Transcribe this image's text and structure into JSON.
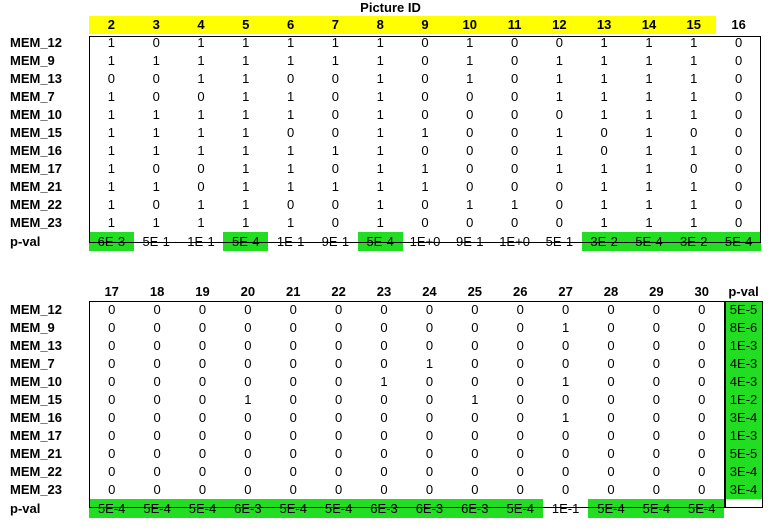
{
  "title": "Picture ID",
  "table1": {
    "headers": [
      "2",
      "3",
      "4",
      "5",
      "6",
      "7",
      "8",
      "9",
      "10",
      "11",
      "12",
      "13",
      "14",
      "15",
      "16"
    ],
    "highlighted_headers": [
      "2",
      "3",
      "4",
      "5",
      "6",
      "7",
      "8",
      "9",
      "10",
      "11",
      "12",
      "13",
      "14",
      "15"
    ],
    "rows": [
      {
        "label": "MEM_12",
        "values": [
          "1",
          "0",
          "1",
          "1",
          "1",
          "1",
          "1",
          "0",
          "1",
          "0",
          "0",
          "1",
          "1",
          "1",
          "0"
        ]
      },
      {
        "label": "MEM_9",
        "values": [
          "1",
          "1",
          "1",
          "1",
          "1",
          "1",
          "1",
          "0",
          "1",
          "0",
          "1",
          "1",
          "1",
          "1",
          "0"
        ]
      },
      {
        "label": "MEM_13",
        "values": [
          "0",
          "0",
          "1",
          "1",
          "0",
          "0",
          "1",
          "0",
          "1",
          "0",
          "1",
          "1",
          "1",
          "1",
          "0"
        ]
      },
      {
        "label": "MEM_7",
        "values": [
          "1",
          "0",
          "0",
          "1",
          "1",
          "0",
          "1",
          "0",
          "0",
          "0",
          "1",
          "1",
          "1",
          "1",
          "0"
        ]
      },
      {
        "label": "MEM_10",
        "values": [
          "1",
          "1",
          "1",
          "1",
          "1",
          "0",
          "1",
          "0",
          "0",
          "0",
          "0",
          "1",
          "1",
          "1",
          "0"
        ]
      },
      {
        "label": "MEM_15",
        "values": [
          "1",
          "1",
          "1",
          "1",
          "0",
          "0",
          "1",
          "1",
          "0",
          "0",
          "1",
          "0",
          "1",
          "0",
          "0"
        ]
      },
      {
        "label": "MEM_16",
        "values": [
          "1",
          "1",
          "1",
          "1",
          "1",
          "1",
          "1",
          "0",
          "0",
          "0",
          "1",
          "0",
          "1",
          "1",
          "0"
        ]
      },
      {
        "label": "MEM_17",
        "values": [
          "1",
          "0",
          "0",
          "1",
          "1",
          "0",
          "1",
          "1",
          "0",
          "0",
          "1",
          "1",
          "1",
          "0",
          "0"
        ]
      },
      {
        "label": "MEM_21",
        "values": [
          "1",
          "1",
          "0",
          "1",
          "1",
          "1",
          "1",
          "1",
          "0",
          "0",
          "0",
          "1",
          "1",
          "1",
          "0"
        ]
      },
      {
        "label": "MEM_22",
        "values": [
          "1",
          "0",
          "1",
          "1",
          "0",
          "0",
          "1",
          "0",
          "1",
          "1",
          "0",
          "1",
          "1",
          "1",
          "0"
        ]
      },
      {
        "label": "MEM_23",
        "values": [
          "1",
          "1",
          "1",
          "1",
          "1",
          "0",
          "1",
          "0",
          "0",
          "0",
          "0",
          "1",
          "1",
          "1",
          "0"
        ]
      }
    ],
    "pval_label": "p-val",
    "pvals": [
      "6E-3",
      "5E-1",
      "1E-1",
      "5E-4",
      "1E-1",
      "9E-1",
      "5E-4",
      "1E+0",
      "9E-1",
      "1E+0",
      "5E-1",
      "3E-2",
      "5E-4",
      "3E-2",
      "5E-4"
    ],
    "pval_highlight": [
      true,
      false,
      false,
      true,
      false,
      false,
      true,
      false,
      false,
      false,
      false,
      true,
      true,
      true,
      true
    ],
    "highlight_color": "#22dd22",
    "header_color": "#ffff00"
  },
  "table2": {
    "headers": [
      "17",
      "18",
      "19",
      "20",
      "21",
      "22",
      "23",
      "24",
      "25",
      "26",
      "27",
      "28",
      "29",
      "30"
    ],
    "pval_col_header": "p-val",
    "rows": [
      {
        "label": "MEM_12",
        "values": [
          "0",
          "0",
          "0",
          "0",
          "0",
          "0",
          "0",
          "0",
          "0",
          "0",
          "0",
          "0",
          "0",
          "0"
        ],
        "pval": "5E-5"
      },
      {
        "label": "MEM_9",
        "values": [
          "0",
          "0",
          "0",
          "0",
          "0",
          "0",
          "0",
          "0",
          "0",
          "0",
          "1",
          "0",
          "0",
          "0"
        ],
        "pval": "8E-6"
      },
      {
        "label": "MEM_13",
        "values": [
          "0",
          "0",
          "0",
          "0",
          "0",
          "0",
          "0",
          "0",
          "0",
          "0",
          "0",
          "0",
          "0",
          "0"
        ],
        "pval": "1E-3"
      },
      {
        "label": "MEM_7",
        "values": [
          "0",
          "0",
          "0",
          "0",
          "0",
          "0",
          "0",
          "1",
          "0",
          "0",
          "0",
          "0",
          "0",
          "0"
        ],
        "pval": "4E-3"
      },
      {
        "label": "MEM_10",
        "values": [
          "0",
          "0",
          "0",
          "0",
          "0",
          "0",
          "1",
          "0",
          "0",
          "0",
          "1",
          "0",
          "0",
          "0"
        ],
        "pval": "4E-3"
      },
      {
        "label": "MEM_15",
        "values": [
          "0",
          "0",
          "0",
          "1",
          "0",
          "0",
          "0",
          "0",
          "1",
          "0",
          "0",
          "0",
          "0",
          "0"
        ],
        "pval": "1E-2"
      },
      {
        "label": "MEM_16",
        "values": [
          "0",
          "0",
          "0",
          "0",
          "0",
          "0",
          "0",
          "0",
          "0",
          "0",
          "1",
          "0",
          "0",
          "0"
        ],
        "pval": "3E-4"
      },
      {
        "label": "MEM_17",
        "values": [
          "0",
          "0",
          "0",
          "0",
          "0",
          "0",
          "0",
          "0",
          "0",
          "0",
          "0",
          "0",
          "0",
          "0"
        ],
        "pval": "1E-3"
      },
      {
        "label": "MEM_21",
        "values": [
          "0",
          "0",
          "0",
          "0",
          "0",
          "0",
          "0",
          "0",
          "0",
          "0",
          "0",
          "0",
          "0",
          "0"
        ],
        "pval": "5E-5"
      },
      {
        "label": "MEM_22",
        "values": [
          "0",
          "0",
          "0",
          "0",
          "0",
          "0",
          "0",
          "0",
          "0",
          "0",
          "0",
          "0",
          "0",
          "0"
        ],
        "pval": "3E-4"
      },
      {
        "label": "MEM_23",
        "values": [
          "0",
          "0",
          "0",
          "0",
          "0",
          "0",
          "0",
          "0",
          "0",
          "0",
          "0",
          "0",
          "0",
          "0"
        ],
        "pval": "3E-4"
      }
    ],
    "pval_label": "p-val",
    "pvals": [
      "5E-4",
      "5E-4",
      "5E-4",
      "6E-3",
      "5E-4",
      "5E-4",
      "6E-3",
      "6E-3",
      "6E-3",
      "5E-4",
      "1E-1",
      "5E-4",
      "5E-4",
      "5E-4"
    ],
    "pval_highlight": [
      true,
      true,
      true,
      true,
      true,
      true,
      true,
      true,
      true,
      true,
      false,
      true,
      true,
      true
    ]
  }
}
